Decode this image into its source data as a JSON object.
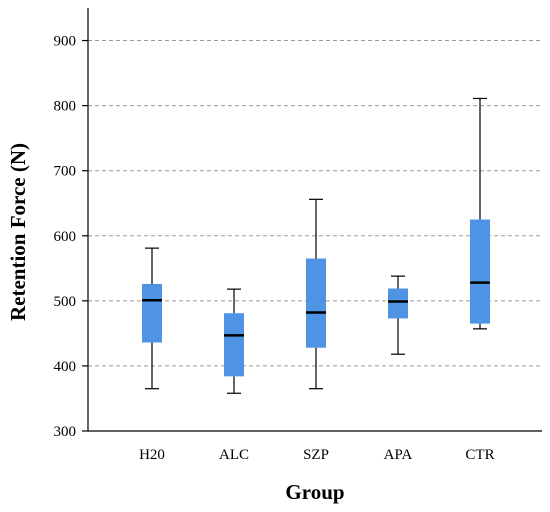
{
  "chart_data": {
    "type": "box",
    "xlabel": "Group",
    "ylabel": "Retention Force (N)",
    "ylim": [
      300,
      950
    ],
    "yticks": [
      300,
      400,
      500,
      600,
      700,
      800,
      900
    ],
    "grid": true,
    "box_color": "#4f93e4",
    "grid_color": "#9a9a9a",
    "categories": [
      "H20",
      "ALC",
      "SZP",
      "APA",
      "CTR"
    ],
    "boxes": [
      {
        "category": "H20",
        "min": 365,
        "q1": 436,
        "median": 501,
        "q3": 526,
        "max": 581
      },
      {
        "category": "ALC",
        "min": 358,
        "q1": 384,
        "median": 447,
        "q3": 481,
        "max": 518
      },
      {
        "category": "SZP",
        "min": 365,
        "q1": 428,
        "median": 482,
        "q3": 565,
        "max": 656
      },
      {
        "category": "APA",
        "min": 418,
        "q1": 473,
        "median": 499,
        "q3": 519,
        "max": 538
      },
      {
        "category": "CTR",
        "min": 457,
        "q1": 465,
        "median": 528,
        "q3": 625,
        "max": 811
      }
    ]
  }
}
